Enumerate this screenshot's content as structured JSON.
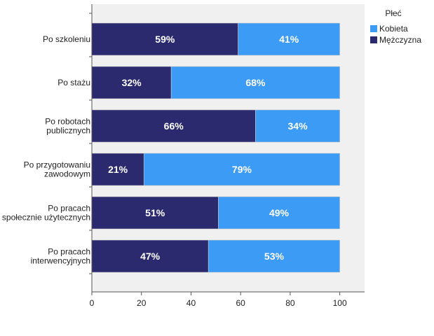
{
  "chart_data": {
    "type": "bar",
    "orientation": "horizontal",
    "stacked": true,
    "categories": [
      [
        "Po szkoleniu"
      ],
      [
        "Po stażu"
      ],
      [
        "Po robotach",
        "publicznych"
      ],
      [
        "Po przygotowaniu",
        "zawodowym"
      ],
      [
        "Po pracach",
        "społecznie użytecznych"
      ],
      [
        "Po pracach",
        "interwencyjnych"
      ]
    ],
    "series": [
      {
        "name": "Mężczyzna",
        "color": "#2b2a6e",
        "values": [
          59,
          32,
          66,
          21,
          51,
          47
        ],
        "labels": [
          "59%",
          "32%",
          "66%",
          "21%",
          "51%",
          "47%"
        ]
      },
      {
        "name": "Kobieta",
        "color": "#3c9bf4",
        "values": [
          41,
          68,
          34,
          79,
          49,
          53
        ],
        "labels": [
          "41%",
          "68%",
          "34%",
          "79%",
          "49%",
          "53%"
        ]
      }
    ],
    "xlim": [
      0,
      110
    ],
    "xticks": [
      0,
      20,
      40,
      60,
      80,
      100
    ],
    "legend": {
      "title": "Płeć",
      "position": "top-right",
      "order": [
        "Kobieta",
        "Mężczyzna"
      ]
    },
    "title": "",
    "xlabel": "",
    "ylabel": "",
    "background": "#f0f0f0"
  }
}
